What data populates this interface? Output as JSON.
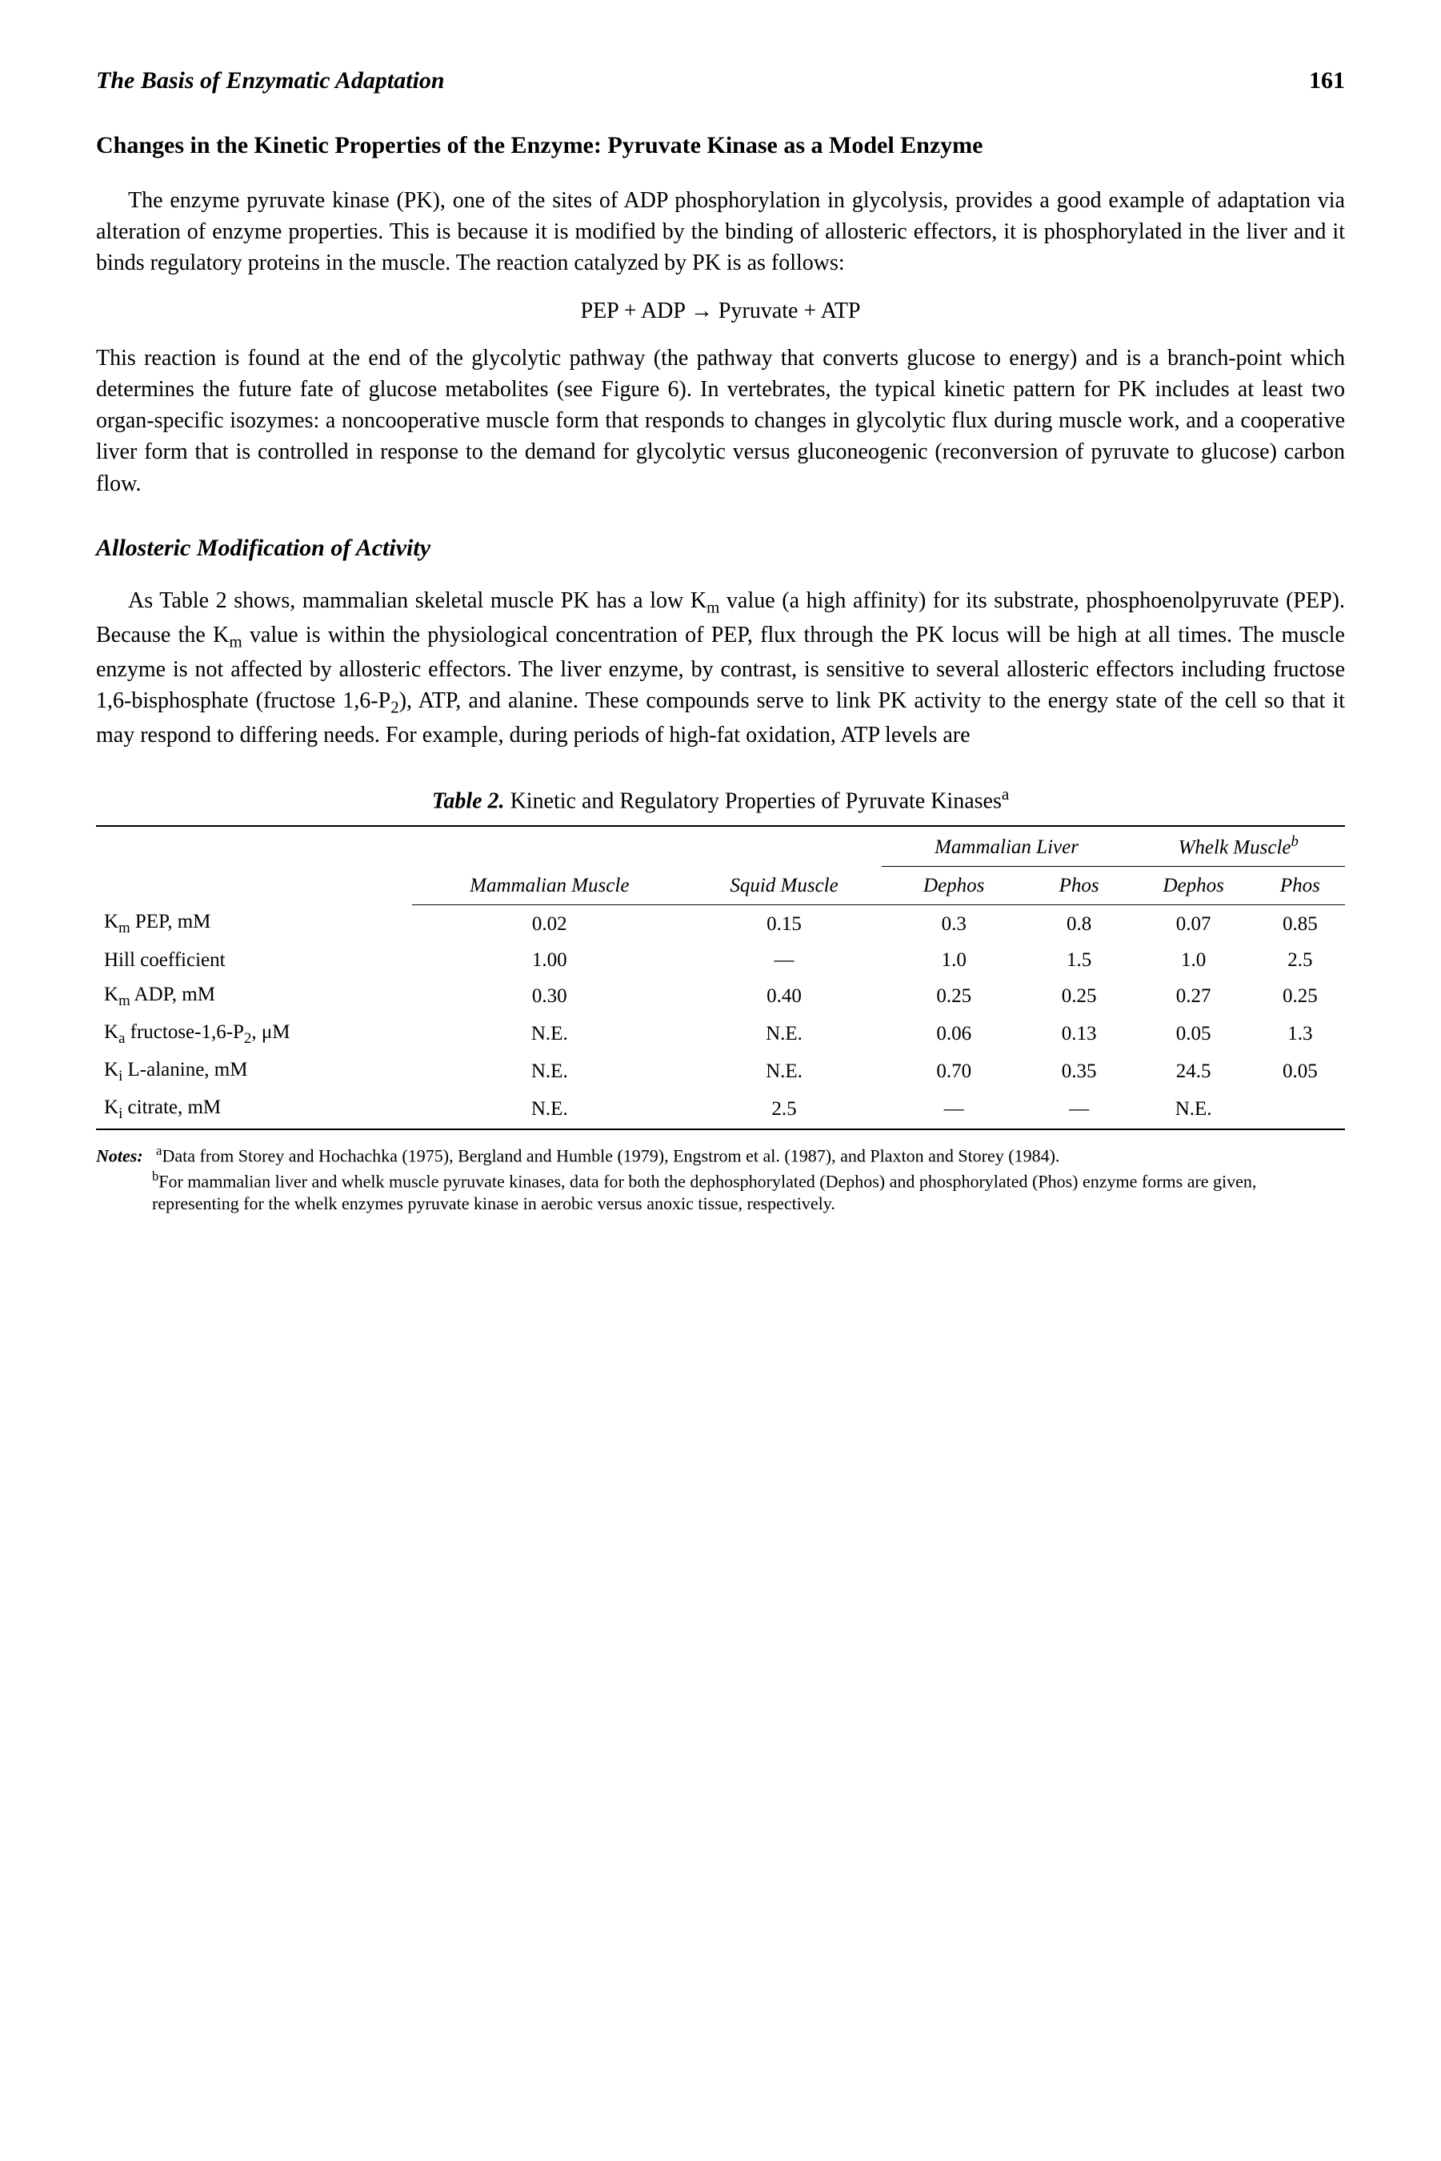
{
  "header": {
    "running_title": "The Basis of Enzymatic Adaptation",
    "page_number": "161"
  },
  "section1": {
    "title": "Changes in the Kinetic Properties of the Enzyme: Pyruvate Kinase as a Model Enzyme",
    "para1": "The enzyme pyruvate kinase (PK), one of the sites of ADP phosphorylation in glycolysis, provides a good example of adaptation via alteration of enzyme properties. This is because it is modified by the binding of allosteric effectors, it is phosphorylated in the liver and it binds regulatory proteins in the muscle. The reaction catalyzed by PK is as follows:",
    "equation": "PEP + ADP → Pyruvate + ATP",
    "para2": "This reaction is found at the end of the glycolytic pathway (the pathway that converts glucose to energy) and is a branch-point which determines the future fate of glucose metabolites (see Figure 6). In vertebrates, the typical kinetic pattern for PK includes at least two organ-specific isozymes: a noncooperative muscle form that responds to changes in glycolytic flux during muscle work, and a cooperative liver form that is controlled in response to the demand for glycolytic versus gluconeogenic (reconversion of pyruvate to glucose) carbon flow."
  },
  "section2": {
    "title": "Allosteric Modification of Activity",
    "para1_a": "As Table 2 shows, mammalian skeletal muscle PK has a low K",
    "para1_b": " value (a high affinity) for its substrate, phosphoenolpyruvate (PEP). Because the K",
    "para1_c": " value is within the physiological concentration of PEP, flux through the PK locus will be high at all times. The muscle enzyme is not affected by allosteric effectors. The liver enzyme, by contrast, is sensitive to several allosteric effectors including fructose 1,6-bisphosphate (fructose 1,6-P",
    "para1_d": "), ATP, and alanine. These compounds serve to link PK activity to the energy state of the cell so that it may respond to differing needs. For example, during periods of high-fat oxidation, ATP levels are"
  },
  "table": {
    "caption_label": "Table 2.",
    "caption_text": "Kinetic and Regulatory Properties of Pyruvate Kinases",
    "caption_super": "a",
    "col_groups": {
      "mammalian_muscle": "Mammalian Muscle",
      "squid_muscle": "Squid Muscle",
      "mammalian_liver": "Mammalian Liver",
      "whelk_muscle": "Whelk Muscle",
      "whelk_super": "b"
    },
    "sub_headers": {
      "dephos": "Dephos",
      "phos": "Phos"
    },
    "rows": [
      {
        "label_a": "K",
        "label_sub": "m",
        "label_b": " PEP, mM",
        "mm": "0.02",
        "sq": "0.15",
        "ld": "0.3",
        "lp": "0.8",
        "wd": "0.07",
        "wp": "0.85"
      },
      {
        "label_a": "Hill coefficient",
        "label_sub": "",
        "label_b": "",
        "mm": "1.00",
        "sq": "—",
        "ld": "1.0",
        "lp": "1.5",
        "wd": "1.0",
        "wp": "2.5"
      },
      {
        "label_a": "K",
        "label_sub": "m",
        "label_b": " ADP, mM",
        "mm": "0.30",
        "sq": "0.40",
        "ld": "0.25",
        "lp": "0.25",
        "wd": "0.27",
        "wp": "0.25"
      },
      {
        "label_a": "K",
        "label_sub": "a",
        "label_b": " fructose-1,6-P",
        "label_sub2": "2",
        "label_c": ", μM",
        "mm": "N.E.",
        "sq": "N.E.",
        "ld": "0.06",
        "lp": "0.13",
        "wd": "0.05",
        "wp": "1.3"
      },
      {
        "label_a": "K",
        "label_sub": "i",
        "label_b": " L-alanine, mM",
        "mm": "N.E.",
        "sq": "N.E.",
        "ld": "0.70",
        "lp": "0.35",
        "wd": "24.5",
        "wp": "0.05"
      },
      {
        "label_a": "K",
        "label_sub": "i",
        "label_b": " citrate, mM",
        "mm": "N.E.",
        "sq": "2.5",
        "ld": "—",
        "lp": "—",
        "wd": "N.E.",
        "wp": ""
      }
    ],
    "notes_label": "Notes:",
    "note_a_super": "a",
    "note_a": "Data from Storey and Hochachka (1975), Bergland and Humble (1979), Engstrom et al. (1987), and Plaxton and Storey (1984).",
    "note_b_super": "b",
    "note_b": "For mammalian liver and whelk muscle pyruvate kinases, data for both the dephosphorylated (Dephos) and phosphorylated (Phos) enzyme forms are given, representing for the whelk enzymes pyruvate kinase in aerobic versus anoxic tissue, respectively."
  }
}
